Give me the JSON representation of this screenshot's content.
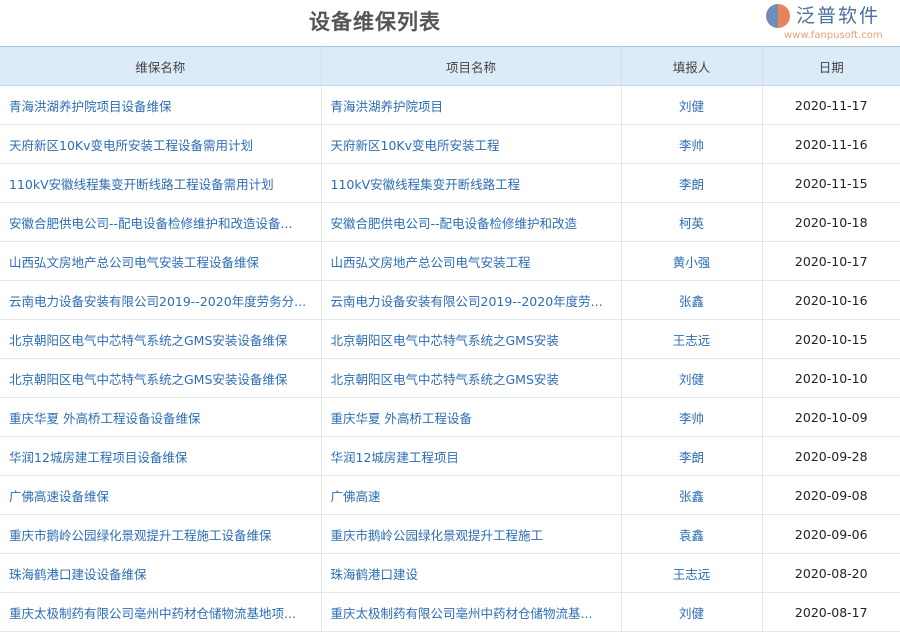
{
  "title": "设备维保列表",
  "columns": [
    "维保名称",
    "项目名称",
    "填报人",
    "日期"
  ],
  "rows": [
    [
      "青海洪湖养护院项目设备维保",
      "青海洪湖养护院项目",
      "刘健",
      "2020-11-17"
    ],
    [
      "天府新区10Kv变电所安装工程设备需用计划",
      "天府新区10Kv变电所安装工程",
      "李帅",
      "2020-11-16"
    ],
    [
      "110kV安徽线程集变开断线路工程设备需用计划",
      "110kV安徽线程集变开断线路工程",
      "李朗",
      "2020-11-15"
    ],
    [
      "安徽合肥供电公司--配电设备检修维护和改造设备...",
      "安徽合肥供电公司--配电设备检修维护和改造",
      "柯英",
      "2020-10-18"
    ],
    [
      "山西弘文房地产总公司电气安装工程设备维保",
      "山西弘文房地产总公司电气安装工程",
      "黄小强",
      "2020-10-17"
    ],
    [
      "云南电力设备安装有限公司2019--2020年度劳务分...",
      "云南电力设备安装有限公司2019--2020年度劳...",
      "张鑫",
      "2020-10-16"
    ],
    [
      "北京朝阳区电气中芯特气系统之GMS安装设备维保",
      "北京朝阳区电气中芯特气系统之GMS安装",
      "王志远",
      "2020-10-15"
    ],
    [
      "北京朝阳区电气中芯特气系统之GMS安装设备维保",
      "北京朝阳区电气中芯特气系统之GMS安装",
      "刘健",
      "2020-10-10"
    ],
    [
      "重庆华夏 外高桥工程设备设备维保",
      "重庆华夏 外高桥工程设备",
      "李帅",
      "2020-10-09"
    ],
    [
      "华润12城房建工程项目设备维保",
      "华润12城房建工程项目",
      "李朗",
      "2020-09-28"
    ],
    [
      "广佛高速设备维保",
      "广佛高速",
      "张鑫",
      "2020-09-08"
    ],
    [
      "重庆市鹅岭公园绿化景观提升工程施工设备维保",
      "重庆市鹅岭公园绿化景观提升工程施工",
      "袁鑫",
      "2020-09-06"
    ],
    [
      "珠海鹤港口建设设备维保",
      "珠海鹤港口建设",
      "王志远",
      "2020-08-20"
    ],
    [
      "重庆太极制药有限公司亳州中药材仓储物流基地项...",
      "重庆太极制药有限公司亳州中药材仓储物流基...",
      "刘健",
      "2020-08-17"
    ]
  ],
  "watermark": {
    "text": "泛普软件",
    "url": "www.fanpusoft.com"
  }
}
